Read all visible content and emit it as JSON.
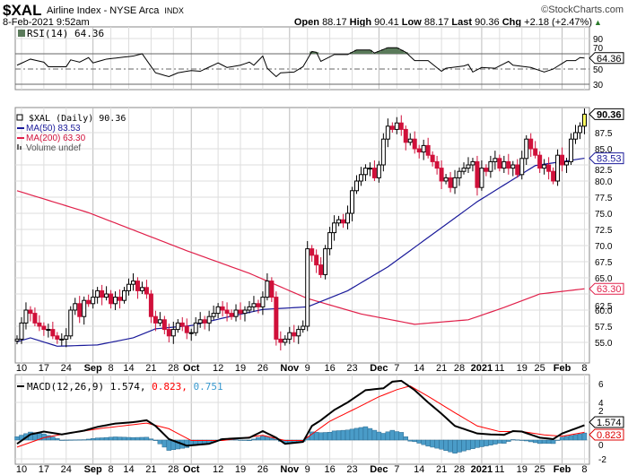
{
  "header": {
    "symbol": "$XAL",
    "name": "Airline Index - NYSE Arca",
    "exchange": "INDX",
    "copyright": "©StockCharts.com",
    "datetime": "8-Feb-2021 9:52am",
    "open_label": "Open",
    "open": "88.17",
    "high_label": "High",
    "high": "90.41",
    "low_label": "Low",
    "low": "88.17",
    "last_label": "Last",
    "last": "90.36",
    "chg_label": "Chg",
    "chg": "+2.18 (+2.47%)",
    "up_arrow": "▲"
  },
  "colors": {
    "up": "#000000",
    "down": "#d0103a",
    "ma50": "#1a1a9a",
    "ma200": "#e0204a",
    "macd": "#000000",
    "signal": "#ff0000",
    "hist": "#4a9cc8",
    "rsi_fill": "#5a7a5a"
  },
  "chart_data": [
    {
      "type": "candlestick",
      "title": "$XAL (Daily) 90.36",
      "legend": [
        "$XAL (Daily) 90.36",
        "MA(50) 83.53",
        "MA(200) 63.30",
        "Volume undef"
      ],
      "legend_placement": "top-left",
      "ylim": [
        53.5,
        91.5
      ],
      "yticks": [
        "55.0",
        "57.5",
        "60.0",
        "62.5",
        "65.0",
        "67.5",
        "70.0",
        "72.5",
        "75.0",
        "77.5",
        "80.0",
        "82.5",
        "85.0",
        "87.5"
      ],
      "last_tag": "90.36",
      "ma50_tag": "83.53",
      "ma200_tag": "63.30",
      "close": [
        55.5,
        58,
        60,
        59.5,
        58,
        57.5,
        57,
        57,
        56,
        55.5,
        55.5,
        56,
        60,
        61,
        59,
        61.5,
        61,
        62,
        63,
        62,
        62.5,
        61,
        62,
        61.5,
        63,
        64,
        64.5,
        63,
        63.5,
        62.5,
        59,
        58,
        58.5,
        57,
        56,
        57,
        58,
        57.5,
        56.5,
        56.5,
        58,
        58.5,
        58,
        59,
        59.5,
        60.5,
        60,
        59.5,
        59,
        60,
        59.5,
        60,
        60.5,
        61,
        60.5,
        62,
        64.5,
        62,
        55.5,
        55,
        55.5,
        56.5,
        56,
        57,
        57.5,
        69.5,
        68.5,
        67,
        65.5,
        69.5,
        72,
        73.5,
        74,
        73.5,
        75,
        78.5,
        80,
        81,
        82,
        82,
        80.5,
        82.5,
        86.5,
        88.5,
        88,
        89,
        88,
        86,
        86.5,
        85,
        84.5,
        85.5,
        84,
        83,
        82,
        80,
        80.5,
        79,
        80.5,
        81.5,
        82,
        82.5,
        83,
        79,
        82,
        81.5,
        83,
        83.5,
        82,
        83,
        82,
        82.5,
        81,
        83.5,
        86.5,
        85,
        84,
        82,
        82.5,
        81.5,
        80,
        84,
        82.5,
        83,
        86.5,
        87.5,
        88.5,
        90.36
      ],
      "ma50": [
        [
          0,
          55.1
        ],
        [
          3,
          55.7
        ],
        [
          9,
          54.4
        ],
        [
          18,
          54.6
        ],
        [
          26,
          55.7
        ],
        [
          31,
          57.1
        ],
        [
          39,
          57.6
        ],
        [
          46,
          58.75
        ],
        [
          55,
          60.1
        ],
        [
          65,
          60.5
        ],
        [
          74,
          63
        ],
        [
          83,
          66.7
        ],
        [
          103,
          76.8
        ],
        [
          116,
          82.4
        ],
        [
          127,
          83.53
        ]
      ],
      "ma200": [
        [
          0,
          78.5
        ],
        [
          16,
          75.1
        ],
        [
          38,
          69.2
        ],
        [
          52,
          65.7
        ],
        [
          65,
          61.8
        ],
        [
          77,
          59.4
        ],
        [
          89,
          57.8
        ],
        [
          101,
          58.5
        ],
        [
          109,
          60.4
        ],
        [
          117,
          62.5
        ],
        [
          127,
          63.3
        ]
      ]
    },
    {
      "type": "line",
      "title": "RSI(14) 64.36",
      "ylim": [
        25,
        100
      ],
      "yticks": [
        "90",
        "70",
        "50",
        "30"
      ],
      "tag": "64.36",
      "values": [
        [
          0,
          55
        ],
        [
          3,
          63
        ],
        [
          6,
          59
        ],
        [
          7,
          53
        ],
        [
          11,
          53
        ],
        [
          12,
          62
        ],
        [
          14,
          59
        ],
        [
          16,
          65
        ],
        [
          17,
          58
        ],
        [
          20,
          63
        ],
        [
          23,
          65
        ],
        [
          26,
          67
        ],
        [
          28,
          70
        ],
        [
          31,
          45
        ],
        [
          34,
          40
        ],
        [
          36,
          45
        ],
        [
          39,
          48
        ],
        [
          41,
          47
        ],
        [
          45,
          58
        ],
        [
          47,
          52
        ],
        [
          50,
          55
        ],
        [
          52,
          59
        ],
        [
          53,
          55
        ],
        [
          55,
          67
        ],
        [
          56,
          51
        ],
        [
          58,
          40
        ],
        [
          59,
          45
        ],
        [
          62,
          46
        ],
        [
          64,
          53
        ],
        [
          66,
          73
        ],
        [
          67,
          72
        ],
        [
          68,
          60
        ],
        [
          71,
          69
        ],
        [
          74,
          69
        ],
        [
          76,
          75
        ],
        [
          79,
          75
        ],
        [
          80,
          71
        ],
        [
          83,
          78
        ],
        [
          85,
          78
        ],
        [
          87,
          72
        ],
        [
          89,
          61
        ],
        [
          92,
          61
        ],
        [
          95,
          47
        ],
        [
          96,
          51
        ],
        [
          100,
          54
        ],
        [
          101,
          56
        ],
        [
          102,
          46
        ],
        [
          104,
          52
        ],
        [
          107,
          51
        ],
        [
          110,
          60
        ],
        [
          111,
          55
        ],
        [
          115,
          52
        ],
        [
          117,
          48
        ],
        [
          118,
          46
        ],
        [
          120,
          50
        ],
        [
          123,
          61
        ],
        [
          125,
          61
        ],
        [
          126,
          65
        ],
        [
          127,
          64.36
        ]
      ]
    },
    {
      "type": "line",
      "title_prefix": "MACD(12,26,9)",
      "macd_value": "1.574,",
      "signal_value": "0.823,",
      "hist_value": "0.751",
      "ylim": [
        -2.6,
        6.9
      ],
      "yticks": [
        "6",
        "4",
        "2",
        "0",
        "-2"
      ],
      "macd_tag": "1.574",
      "signal_tag": "0.823",
      "macd": [
        [
          0,
          -0.4
        ],
        [
          3,
          0.6
        ],
        [
          6,
          0.9
        ],
        [
          10,
          0.6
        ],
        [
          15,
          1.0
        ],
        [
          18,
          1.4
        ],
        [
          22,
          1.75
        ],
        [
          26,
          1.9
        ],
        [
          29,
          2.1
        ],
        [
          31,
          1.5
        ],
        [
          34,
          0.1
        ],
        [
          38,
          -0.6
        ],
        [
          43,
          -0.4
        ],
        [
          46,
          0.1
        ],
        [
          52,
          0.25
        ],
        [
          55,
          0.95
        ],
        [
          58,
          0.25
        ],
        [
          60,
          -0.4
        ],
        [
          64,
          -0.2
        ],
        [
          66,
          1.5
        ],
        [
          68,
          2.1
        ],
        [
          71,
          3.2
        ],
        [
          74,
          4.0
        ],
        [
          78,
          5.3
        ],
        [
          82,
          5.5
        ],
        [
          84,
          6.2
        ],
        [
          86,
          6.3
        ],
        [
          89,
          5.3
        ],
        [
          92,
          4.0
        ],
        [
          95,
          2.8
        ],
        [
          98,
          1.5
        ],
        [
          103,
          0.7
        ],
        [
          106,
          0.6
        ],
        [
          109,
          0.55
        ],
        [
          111,
          0.95
        ],
        [
          113,
          0.9
        ],
        [
          117,
          0.25
        ],
        [
          120,
          0.1
        ],
        [
          122,
          0.7
        ],
        [
          127,
          1.574
        ]
      ],
      "signal": [
        [
          0,
          -0.75
        ],
        [
          6,
          0.25
        ],
        [
          10,
          0.6
        ],
        [
          19,
          1.25
        ],
        [
          29,
          1.8
        ],
        [
          34,
          1.2
        ],
        [
          39,
          -0.05
        ],
        [
          46,
          -0.05
        ],
        [
          55,
          0.5
        ],
        [
          60,
          -0.05
        ],
        [
          64,
          -0.05
        ],
        [
          70,
          2.0
        ],
        [
          76,
          3.4
        ],
        [
          81,
          4.6
        ],
        [
          85,
          5.35
        ],
        [
          88,
          5.75
        ],
        [
          92,
          4.65
        ],
        [
          98,
          2.9
        ],
        [
          103,
          1.5
        ],
        [
          108,
          0.9
        ],
        [
          113,
          0.9
        ],
        [
          118,
          0.55
        ],
        [
          122,
          0.4
        ],
        [
          127,
          0.823
        ]
      ]
    }
  ],
  "xaxis": [
    {
      "label": "10",
      "idx": 1
    },
    {
      "label": "17",
      "idx": 6
    },
    {
      "label": "24",
      "idx": 11
    },
    {
      "label": "Sep",
      "idx": 17,
      "bold": true
    },
    {
      "label": "8",
      "idx": 21
    },
    {
      "label": "14",
      "idx": 25
    },
    {
      "label": "21",
      "idx": 30
    },
    {
      "label": "28",
      "idx": 35
    },
    {
      "label": "Oct",
      "idx": 39,
      "bold": true
    },
    {
      "label": "12",
      "idx": 45
    },
    {
      "label": "19",
      "idx": 50
    },
    {
      "label": "26",
      "idx": 55
    },
    {
      "label": "Nov",
      "idx": 61,
      "bold": true
    },
    {
      "label": "9",
      "idx": 65
    },
    {
      "label": "16",
      "idx": 70
    },
    {
      "label": "23",
      "idx": 75
    },
    {
      "label": "Dec",
      "idx": 81,
      "bold": true
    },
    {
      "label": "7",
      "idx": 85
    },
    {
      "label": "14",
      "idx": 90
    },
    {
      "label": "21",
      "idx": 95
    },
    {
      "label": "28",
      "idx": 99
    },
    {
      "label": "2021",
      "idx": 104,
      "bold": true
    },
    {
      "label": "11",
      "idx": 108
    },
    {
      "label": "19",
      "idx": 113
    },
    {
      "label": "25",
      "idx": 117
    },
    {
      "label": "Feb",
      "idx": 122,
      "bold": true
    },
    {
      "label": "8",
      "idx": 127
    }
  ]
}
